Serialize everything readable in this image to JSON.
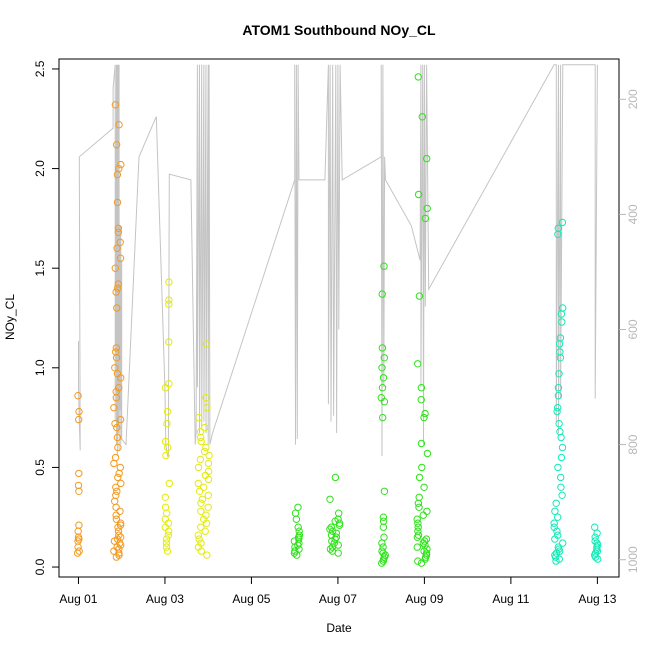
{
  "chart_data": {
    "type": "scatter",
    "title": "ATOM1 Southbound NOy_CL",
    "xlabel": "Date",
    "ylabel": "NOy_CL",
    "x_ticks": [
      "Aug 01",
      "Aug 03",
      "Aug 05",
      "Aug 07",
      "Aug 09",
      "Aug 11",
      "Aug 13"
    ],
    "x_tick_days": [
      1,
      3,
      5,
      7,
      9,
      11,
      13
    ],
    "xlim_days": [
      0.55,
      13.5
    ],
    "ylim": [
      -0.05,
      2.55
    ],
    "y_ticks": [
      0.0,
      0.5,
      1.0,
      1.5,
      2.0,
      2.5
    ],
    "y_tick_labels": [
      "0.0",
      "0.5",
      "1.0",
      "1.5",
      "2.0",
      "2.5"
    ],
    "right_axis": {
      "ticks": [
        200,
        400,
        600,
        800,
        1000
      ],
      "tick_labels": [
        "200",
        "400",
        "600",
        "800",
        "1000"
      ],
      "lim_top": 130,
      "lim_bottom": 1030,
      "inverted": true,
      "color": "#b8b8b8"
    },
    "grid": false,
    "legend": "none",
    "series_colors": [
      "#f39a20",
      "#e3ea10",
      "#2ee21a",
      "#13eab6"
    ],
    "clusters": [
      {
        "day": 1.0,
        "spread": 0.02,
        "color_index": 0,
        "values": [
          0.07,
          0.08,
          0.1,
          0.13,
          0.14,
          0.15,
          0.18,
          0.21,
          0.38,
          0.41,
          0.47,
          0.74,
          0.78,
          0.86
        ]
      },
      {
        "day": 1.9,
        "spread": 0.09,
        "color_index": 0,
        "values": [
          0.05,
          0.06,
          0.07,
          0.08,
          0.09,
          0.1,
          0.11,
          0.12,
          0.13,
          0.14,
          0.15,
          0.16,
          0.18,
          0.2,
          0.21,
          0.22,
          0.24,
          0.26,
          0.28,
          0.3,
          0.33,
          0.36,
          0.38,
          0.4,
          0.42,
          0.45,
          0.47,
          0.5,
          0.52,
          0.55,
          0.6,
          0.65,
          0.7,
          0.72,
          0.74,
          0.8,
          0.85,
          0.88,
          0.9,
          0.95,
          0.97,
          1.0,
          1.05,
          1.08,
          1.1,
          1.3,
          1.38,
          1.4,
          1.42,
          1.5,
          1.55,
          1.6,
          1.63,
          1.68,
          1.7,
          1.83,
          1.97,
          2.0,
          2.02,
          2.12,
          2.22,
          2.32
        ]
      },
      {
        "day": 3.05,
        "spread": 0.05,
        "color_index": 1,
        "values": [
          0.08,
          0.1,
          0.12,
          0.14,
          0.16,
          0.18,
          0.2,
          0.22,
          0.24,
          0.27,
          0.3,
          0.35,
          0.42,
          0.56,
          0.6,
          0.63,
          0.72,
          0.78,
          0.9,
          0.92,
          1.13,
          1.32,
          1.34,
          1.43
        ]
      },
      {
        "day": 3.9,
        "spread": 0.13,
        "color_index": 1,
        "values": [
          0.06,
          0.08,
          0.1,
          0.12,
          0.14,
          0.16,
          0.18,
          0.2,
          0.22,
          0.24,
          0.26,
          0.28,
          0.3,
          0.32,
          0.34,
          0.36,
          0.38,
          0.4,
          0.42,
          0.44,
          0.46,
          0.48,
          0.5,
          0.52,
          0.54,
          0.56,
          0.58,
          0.6,
          0.63,
          0.65,
          0.68,
          0.7,
          0.75,
          0.8,
          0.85,
          1.12
        ]
      },
      {
        "day": 6.05,
        "spread": 0.06,
        "color_index": 2,
        "values": [
          0.06,
          0.07,
          0.08,
          0.09,
          0.1,
          0.11,
          0.12,
          0.13,
          0.14,
          0.15,
          0.16,
          0.18,
          0.2,
          0.24,
          0.27,
          0.3
        ]
      },
      {
        "day": 6.9,
        "spread": 0.14,
        "color_index": 2,
        "values": [
          0.07,
          0.08,
          0.09,
          0.1,
          0.11,
          0.12,
          0.13,
          0.14,
          0.15,
          0.16,
          0.17,
          0.18,
          0.19,
          0.2,
          0.21,
          0.22,
          0.23,
          0.24,
          0.27,
          0.34,
          0.45
        ]
      },
      {
        "day": 8.05,
        "spread": 0.05,
        "color_index": 2,
        "values": [
          0.02,
          0.03,
          0.04,
          0.05,
          0.06,
          0.07,
          0.08,
          0.1,
          0.12,
          0.15,
          0.2,
          0.23,
          0.25,
          0.38,
          0.75,
          0.83,
          0.85,
          0.9,
          0.95,
          1.0,
          1.05,
          1.1,
          1.37,
          1.51
        ]
      },
      {
        "day": 8.95,
        "spread": 0.12,
        "color_index": 2,
        "values": [
          0.02,
          0.03,
          0.04,
          0.05,
          0.06,
          0.07,
          0.08,
          0.09,
          0.1,
          0.11,
          0.12,
          0.13,
          0.14,
          0.15,
          0.16,
          0.18,
          0.2,
          0.22,
          0.24,
          0.26,
          0.28,
          0.3,
          0.32,
          0.35,
          0.4,
          0.45,
          0.5,
          0.57,
          0.62,
          0.75,
          0.77,
          0.84,
          0.9,
          1.02,
          1.36,
          1.75,
          1.8,
          1.87,
          2.05,
          2.26,
          2.46
        ]
      },
      {
        "day": 12.1,
        "spread": 0.1,
        "color_index": 3,
        "values": [
          0.03,
          0.04,
          0.05,
          0.06,
          0.07,
          0.08,
          0.09,
          0.1,
          0.12,
          0.14,
          0.16,
          0.18,
          0.2,
          0.22,
          0.25,
          0.28,
          0.32,
          0.36,
          0.4,
          0.45,
          0.5,
          0.55,
          0.6,
          0.65,
          0.68,
          0.72,
          0.78,
          0.8,
          0.86,
          0.9,
          0.97,
          1.05,
          1.08,
          1.12,
          1.15,
          1.23,
          1.27,
          1.3,
          1.67,
          1.7,
          1.73
        ]
      },
      {
        "day": 12.97,
        "spread": 0.04,
        "color_index": 3,
        "values": [
          0.04,
          0.05,
          0.06,
          0.07,
          0.08,
          0.09,
          0.1,
          0.11,
          0.12,
          0.13,
          0.15,
          0.17,
          0.2
        ]
      }
    ],
    "altitude_line": {
      "color": "#c4c4c4",
      "points": [
        [
          1.0,
          620
        ],
        [
          1.0,
          700
        ],
        [
          1.02,
          760
        ],
        [
          1.04,
          810
        ],
        [
          1.02,
          300
        ],
        [
          1.8,
          250
        ],
        [
          1.8,
          180
        ],
        [
          1.85,
          140
        ],
        [
          1.85,
          760
        ],
        [
          1.88,
          140
        ],
        [
          1.88,
          800
        ],
        [
          1.9,
          140
        ],
        [
          1.9,
          820
        ],
        [
          1.92,
          140
        ],
        [
          1.92,
          780
        ],
        [
          1.94,
          140
        ],
        [
          1.94,
          810
        ],
        [
          1.96,
          420
        ],
        [
          1.96,
          740
        ],
        [
          1.98,
          420
        ],
        [
          1.98,
          800
        ],
        [
          2.0,
          480
        ],
        [
          2.0,
          790
        ],
        [
          2.1,
          800
        ],
        [
          2.4,
          300
        ],
        [
          2.8,
          230
        ],
        [
          3.0,
          700
        ],
        [
          3.02,
          800
        ],
        [
          3.06,
          820
        ],
        [
          3.08,
          820
        ],
        [
          3.1,
          330
        ],
        [
          3.6,
          340
        ],
        [
          3.7,
          800
        ],
        [
          3.72,
          780
        ],
        [
          3.75,
          140
        ],
        [
          3.75,
          700
        ],
        [
          3.8,
          140
        ],
        [
          3.8,
          780
        ],
        [
          3.85,
          140
        ],
        [
          3.85,
          770
        ],
        [
          3.9,
          140
        ],
        [
          3.9,
          760
        ],
        [
          3.95,
          140
        ],
        [
          3.95,
          780
        ],
        [
          4.0,
          140
        ],
        [
          4.0,
          800
        ],
        [
          4.02,
          140
        ],
        [
          4.04,
          800
        ],
        [
          4.1,
          780
        ],
        [
          6.0,
          340
        ],
        [
          6.0,
          140
        ],
        [
          6.02,
          800
        ],
        [
          6.04,
          140
        ],
        [
          6.06,
          790
        ],
        [
          6.08,
          140
        ],
        [
          6.1,
          340
        ],
        [
          6.6,
          340
        ],
        [
          6.7,
          340
        ],
        [
          6.78,
          140
        ],
        [
          6.78,
          730
        ],
        [
          6.82,
          140
        ],
        [
          6.84,
          760
        ],
        [
          6.88,
          140
        ],
        [
          6.9,
          750
        ],
        [
          6.95,
          140
        ],
        [
          6.97,
          780
        ],
        [
          7.0,
          140
        ],
        [
          7.02,
          600
        ],
        [
          7.05,
          140
        ],
        [
          7.1,
          340
        ],
        [
          8.0,
          300
        ],
        [
          8.0,
          140
        ],
        [
          8.02,
          820
        ],
        [
          8.04,
          140
        ],
        [
          8.06,
          700
        ],
        [
          8.08,
          300
        ],
        [
          8.1,
          340
        ],
        [
          8.7,
          420
        ],
        [
          8.9,
          480
        ],
        [
          8.92,
          140
        ],
        [
          8.92,
          700
        ],
        [
          8.96,
          140
        ],
        [
          8.98,
          800
        ],
        [
          9.0,
          140
        ],
        [
          9.02,
          560
        ],
        [
          9.05,
          140
        ],
        [
          9.1,
          530
        ],
        [
          12.0,
          140
        ],
        [
          12.05,
          140
        ],
        [
          12.05,
          760
        ],
        [
          12.1,
          140
        ],
        [
          12.1,
          780
        ],
        [
          12.15,
          140
        ],
        [
          12.15,
          720
        ],
        [
          12.2,
          140
        ],
        [
          12.2,
          140
        ],
        [
          12.9,
          140
        ],
        [
          12.95,
          140
        ],
        [
          12.95,
          720
        ],
        [
          13.0,
          140
        ]
      ]
    }
  }
}
